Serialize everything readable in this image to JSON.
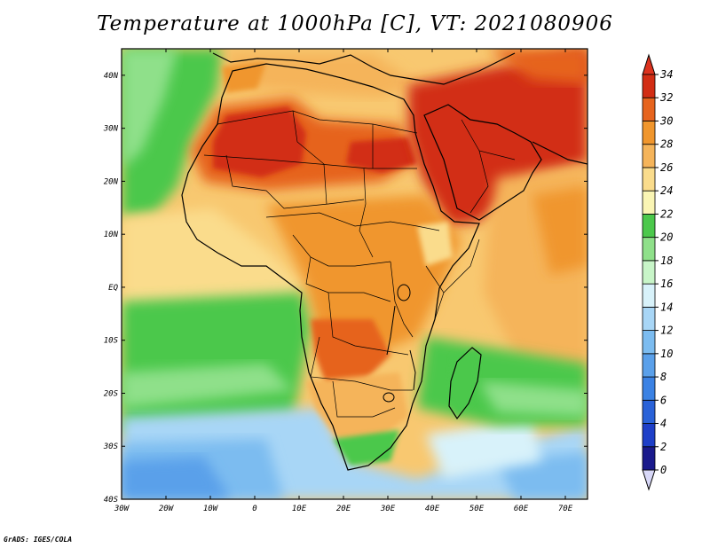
{
  "title": "Temperature at 1000hPa [C], VT: 2021080906",
  "credit": "GrADS: IGES/COLA",
  "map": {
    "lon_ticks": [
      "30W",
      "20W",
      "10W",
      "0",
      "10E",
      "20E",
      "30E",
      "40E",
      "50E",
      "60E",
      "70E"
    ],
    "lat_ticks": [
      "40N",
      "30N",
      "20N",
      "10N",
      "EQ",
      "10S",
      "20S",
      "30S",
      "40S"
    ],
    "lon_range": [
      -30,
      75
    ],
    "lat_range": [
      -40,
      45
    ]
  },
  "colorbar": {
    "labels": [
      "0",
      "2",
      "4",
      "6",
      "8",
      "10",
      "12",
      "14",
      "16",
      "18",
      "20",
      "22",
      "24",
      "26",
      "28",
      "30",
      "32",
      "34"
    ],
    "colors": [
      "#1a1a8c",
      "#1e3fc8",
      "#2a62d8",
      "#3b82e4",
      "#5aa0ea",
      "#7cbcf0",
      "#a8d6f6",
      "#d8f2fa",
      "#c8f5c8",
      "#8fe08a",
      "#4cc84c",
      "#faf5b4",
      "#fadc8c",
      "#f5b45a",
      "#f0962d",
      "#e6641e",
      "#d22d14"
    ],
    "under_color": "#d8d8f8",
    "over_color": "#dc321e"
  },
  "legend_regions": {
    "desert_hot": "#d42a12",
    "sahel_warm": "#f09a30",
    "tropical": "#f8be5e",
    "cool_ocean": "#a8d6f6",
    "cold_ocean": "#5aa0ea",
    "land_green": "#4cc84c"
  }
}
